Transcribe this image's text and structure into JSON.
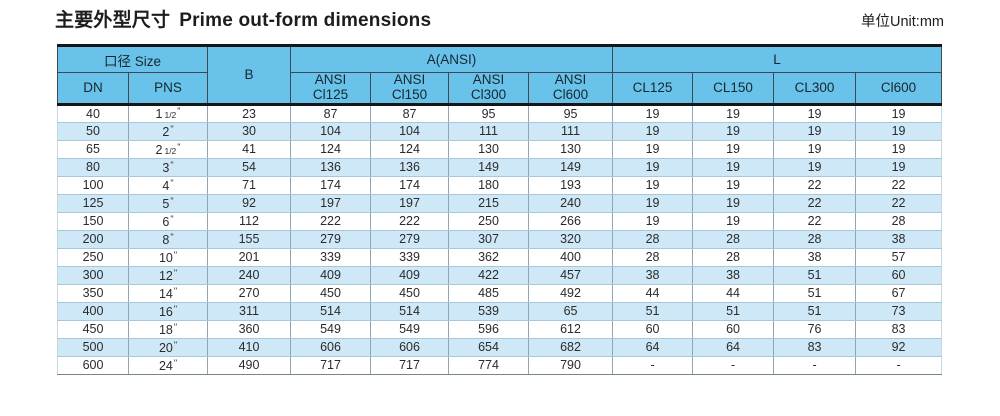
{
  "page": {
    "title_zh": "主要外型尺寸",
    "title_en": "Prime out-form dimensions",
    "unit_label": "单位Unit:mm"
  },
  "table": {
    "header": {
      "size_group": "口径 Size",
      "dn": "DN",
      "pns": "PNS",
      "b": "B",
      "a_group": "A(ANSI)",
      "a_cols": [
        {
          "l1": "ANSI",
          "l2": "Cl125"
        },
        {
          "l1": "ANSI",
          "l2": "Cl150"
        },
        {
          "l1": "ANSI",
          "l2": "Cl300"
        },
        {
          "l1": "ANSI",
          "l2": "Cl600"
        }
      ],
      "l_group": "L",
      "l_cols": [
        "CL125",
        "CL150",
        "CL300",
        "Cl600"
      ]
    },
    "inch_mark": "\"",
    "rows": [
      {
        "dn": "40",
        "pns_main": "1",
        "pns_frac": "1/2",
        "b": "23",
        "a": [
          "87",
          "87",
          "95",
          "95"
        ],
        "l": [
          "19",
          "19",
          "19",
          "19"
        ]
      },
      {
        "dn": "50",
        "pns_main": "2",
        "pns_frac": "",
        "b": "30",
        "a": [
          "104",
          "104",
          "111",
          "111"
        ],
        "l": [
          "19",
          "19",
          "19",
          "19"
        ]
      },
      {
        "dn": "65",
        "pns_main": "2",
        "pns_frac": "1/2",
        "b": "41",
        "a": [
          "124",
          "124",
          "130",
          "130"
        ],
        "l": [
          "19",
          "19",
          "19",
          "19"
        ]
      },
      {
        "dn": "80",
        "pns_main": "3",
        "pns_frac": "",
        "b": "54",
        "a": [
          "136",
          "136",
          "149",
          "149"
        ],
        "l": [
          "19",
          "19",
          "19",
          "19"
        ]
      },
      {
        "dn": "100",
        "pns_main": "4",
        "pns_frac": "",
        "b": "71",
        "a": [
          "174",
          "174",
          "180",
          "193"
        ],
        "l": [
          "19",
          "19",
          "22",
          "22"
        ]
      },
      {
        "dn": "125",
        "pns_main": "5",
        "pns_frac": "",
        "b": "92",
        "a": [
          "197",
          "197",
          "215",
          "240"
        ],
        "l": [
          "19",
          "19",
          "22",
          "22"
        ]
      },
      {
        "dn": "150",
        "pns_main": "6",
        "pns_frac": "",
        "b": "112",
        "a": [
          "222",
          "222",
          "250",
          "266"
        ],
        "l": [
          "19",
          "19",
          "22",
          "28"
        ]
      },
      {
        "dn": "200",
        "pns_main": "8",
        "pns_frac": "",
        "b": "155",
        "a": [
          "279",
          "279",
          "307",
          "320"
        ],
        "l": [
          "28",
          "28",
          "28",
          "38"
        ]
      },
      {
        "dn": "250",
        "pns_main": "10",
        "pns_frac": "",
        "b": "201",
        "a": [
          "339",
          "339",
          "362",
          "400"
        ],
        "l": [
          "28",
          "28",
          "38",
          "57"
        ]
      },
      {
        "dn": "300",
        "pns_main": "12",
        "pns_frac": "",
        "b": "240",
        "a": [
          "409",
          "409",
          "422",
          "457"
        ],
        "l": [
          "38",
          "38",
          "51",
          "60"
        ]
      },
      {
        "dn": "350",
        "pns_main": "14",
        "pns_frac": "",
        "b": "270",
        "a": [
          "450",
          "450",
          "485",
          "492"
        ],
        "l": [
          "44",
          "44",
          "51",
          "67"
        ]
      },
      {
        "dn": "400",
        "pns_main": "16",
        "pns_frac": "",
        "b": "311",
        "a": [
          "514",
          "514",
          "539",
          "65"
        ],
        "l": [
          "51",
          "51",
          "51",
          "73"
        ]
      },
      {
        "dn": "450",
        "pns_main": "18",
        "pns_frac": "",
        "b": "360",
        "a": [
          "549",
          "549",
          "596",
          "612"
        ],
        "l": [
          "60",
          "60",
          "76",
          "83"
        ]
      },
      {
        "dn": "500",
        "pns_main": "20",
        "pns_frac": "",
        "b": "410",
        "a": [
          "606",
          "606",
          "654",
          "682"
        ],
        "l": [
          "64",
          "64",
          "83",
          "92"
        ]
      },
      {
        "dn": "600",
        "pns_main": "24",
        "pns_frac": "",
        "b": "490",
        "a": [
          "717",
          "717",
          "774",
          "790"
        ],
        "l": [
          "-",
          "-",
          "-",
          "-"
        ]
      }
    ],
    "colors": {
      "header_bg": "#68c2e9",
      "row_alt_bg": "#cfe8f7",
      "border_dark": "#161616"
    }
  }
}
